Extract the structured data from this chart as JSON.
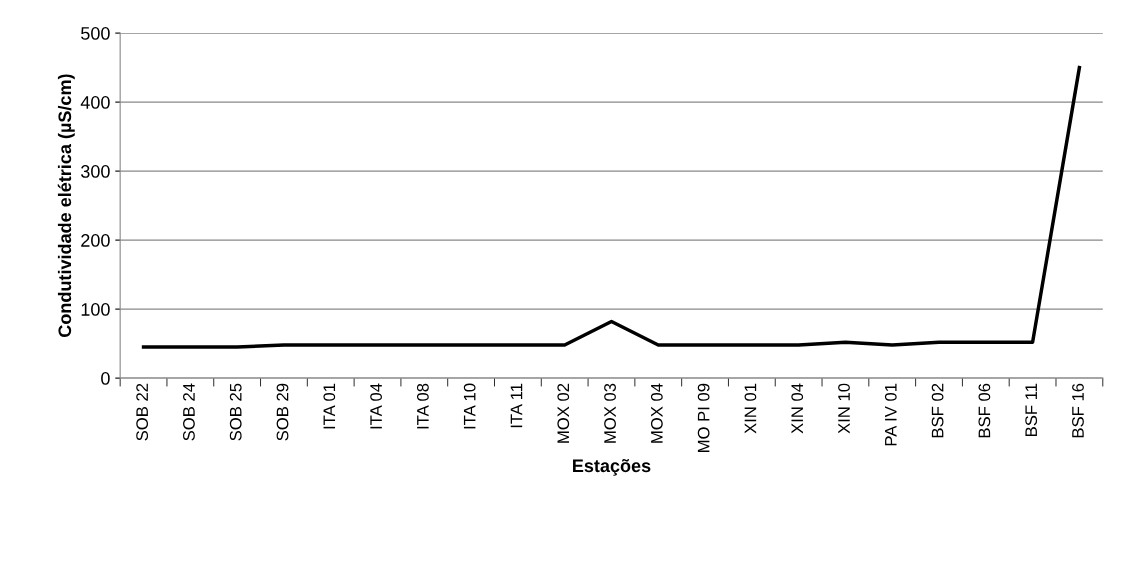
{
  "chart_data": {
    "type": "line",
    "xlabel": "Estações",
    "ylabel": "Condutividade elétrica (µS/cm)",
    "categories": [
      "SOB 22",
      "SOB 24",
      "SOB 25",
      "SOB 29",
      "ITA 01",
      "ITA 04",
      "ITA 08",
      "ITA 10",
      "ITA 11",
      "MOX 02",
      "MOX 03",
      "MOX 04",
      "MO PI 09",
      "XIN 01",
      "XIN 04",
      "XIN 10",
      "PA IV 01",
      "BSF 02",
      "BSF 06",
      "BSF 11",
      "BSF 16"
    ],
    "series": [
      {
        "color": "#000000",
        "values": [
          45,
          45,
          45,
          48,
          48,
          48,
          48,
          48,
          48,
          48,
          82,
          48,
          48,
          48,
          48,
          52,
          48,
          52,
          52,
          52,
          450
        ]
      }
    ],
    "ylim": [
      0,
      500
    ],
    "yticks": [
      0,
      100,
      200,
      300,
      400,
      500
    ],
    "grid": "y",
    "legend": false,
    "marker": "none",
    "line_style": "solid"
  }
}
